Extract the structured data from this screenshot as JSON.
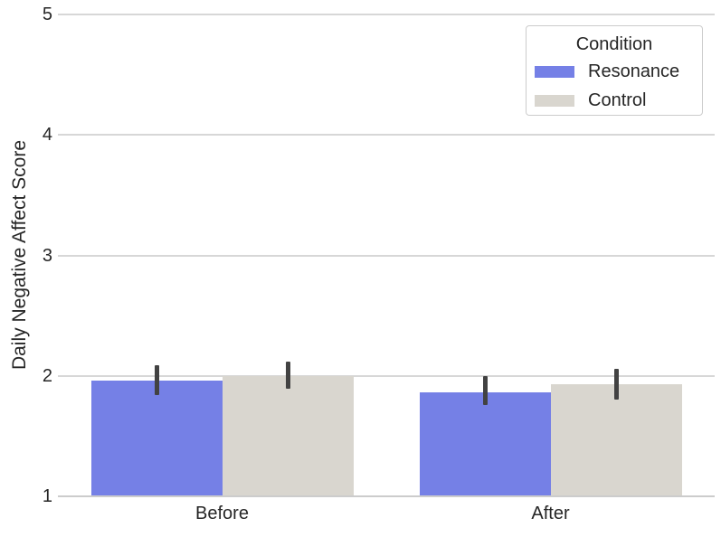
{
  "chart_data": {
    "type": "bar",
    "title": "",
    "xlabel": "",
    "ylabel": "Daily Negative Affect Score",
    "categories": [
      "Before",
      "After"
    ],
    "series": [
      {
        "name": "Resonance",
        "color": "#7580e6",
        "values": [
          1.96,
          1.86
        ],
        "err_low": [
          1.84,
          1.76
        ],
        "err_high": [
          2.09,
          2.0
        ]
      },
      {
        "name": "Control",
        "color": "#d9d6cf",
        "values": [
          2.0,
          1.93
        ],
        "err_low": [
          1.89,
          1.8
        ],
        "err_high": [
          2.12,
          2.06
        ]
      }
    ],
    "ylim": [
      1,
      5
    ],
    "yticks": [
      1,
      2,
      3,
      4,
      5
    ],
    "grid": true,
    "error_bar_color": "#424242",
    "grid_color": "#d7d7d7",
    "axis_line_color": "#cccccc",
    "text_color": "#262626",
    "legend": {
      "title": "Condition",
      "position": "upper-right"
    }
  }
}
